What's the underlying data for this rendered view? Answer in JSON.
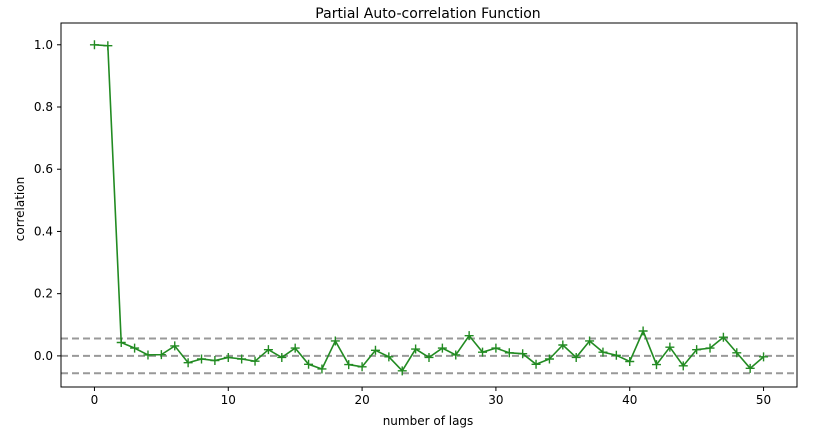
{
  "chart_data": {
    "type": "line",
    "title": "Partial Auto-correlation Function",
    "xlabel": "number of lags",
    "ylabel": "correlation",
    "xlim": [
      -2.5,
      52.5
    ],
    "ylim": [
      -0.1,
      1.07
    ],
    "xticks": [
      0,
      10,
      20,
      30,
      40,
      50
    ],
    "yticks": [
      0.0,
      0.2,
      0.4,
      0.6,
      0.8,
      1.0
    ],
    "ytick_labels": [
      "0.0",
      "0.2",
      "0.4",
      "0.6",
      "0.8",
      "1.0"
    ],
    "grid": false,
    "reference_lines": [
      0.056,
      0.0,
      -0.056
    ],
    "colors": {
      "series": "#228B22",
      "reference": "#999999"
    },
    "series": [
      {
        "marker": "+",
        "x": [
          0,
          1,
          2,
          3,
          4,
          5,
          6,
          7,
          8,
          9,
          10,
          11,
          12,
          13,
          14,
          15,
          16,
          17,
          18,
          19,
          20,
          21,
          22,
          23,
          24,
          25,
          26,
          27,
          28,
          29,
          30,
          31,
          32,
          33,
          34,
          35,
          36,
          37,
          38,
          39,
          40,
          41,
          42,
          43,
          44,
          45,
          46,
          47,
          48,
          49,
          50
        ],
        "y": [
          1.0,
          0.997,
          0.043,
          0.025,
          0.003,
          0.004,
          0.032,
          -0.022,
          -0.01,
          -0.015,
          -0.005,
          -0.01,
          -0.017,
          0.02,
          -0.005,
          0.025,
          -0.027,
          -0.042,
          0.048,
          -0.028,
          -0.035,
          0.018,
          -0.003,
          -0.048,
          0.022,
          -0.005,
          0.025,
          0.003,
          0.065,
          0.012,
          0.025,
          0.01,
          0.007,
          -0.027,
          -0.01,
          0.035,
          -0.005,
          0.048,
          0.012,
          0.002,
          -0.018,
          0.08,
          -0.028,
          0.028,
          -0.032,
          0.02,
          0.025,
          0.06,
          0.01,
          -0.04,
          -0.003
        ]
      }
    ]
  }
}
